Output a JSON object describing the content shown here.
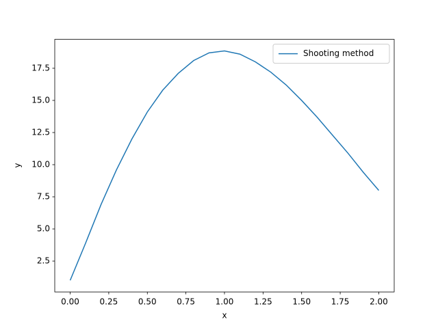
{
  "chart_data": {
    "type": "line",
    "x_label": "x",
    "y_label": "y",
    "x": [
      0,
      0.1,
      0.2,
      0.3,
      0.4,
      0.5,
      0.6,
      0.7,
      0.8,
      0.9,
      1.0,
      1.1,
      1.2,
      1.3,
      1.4,
      1.5,
      1.6,
      1.7,
      1.8,
      1.9,
      2.0
    ],
    "series": [
      {
        "name": "Shooting method",
        "color": "#1f77b4",
        "values": [
          1,
          3.9,
          6.9,
          9.6,
          12.0,
          14.1,
          15.8,
          17.1,
          18.1,
          18.7,
          18.85,
          18.6,
          18.0,
          17.2,
          16.2,
          15.0,
          13.7,
          12.3,
          10.9,
          9.4,
          8.0
        ]
      }
    ],
    "xlim": [
      -0.1,
      2.1
    ],
    "xticks": [
      {
        "value": 0,
        "label": "0.00"
      },
      {
        "value": 0.25,
        "label": "0.25"
      },
      {
        "value": 0.5,
        "label": "0.50"
      },
      {
        "value": 0.75,
        "label": "0.75"
      },
      {
        "value": 1,
        "label": "1.00"
      },
      {
        "value": 1.25,
        "label": "1.25"
      },
      {
        "value": 1.5,
        "label": "1.50"
      },
      {
        "value": 1.75,
        "label": "1.75"
      },
      {
        "value": 2,
        "label": "2.00"
      }
    ],
    "ylim": [
      0.1,
      19.75
    ],
    "yticks": [
      2.5,
      {
        "value": 5,
        "label": "5.0"
      },
      7.5,
      {
        "value": 10,
        "label": "10.0"
      },
      12.5,
      {
        "value": 15,
        "label": "15.0"
      },
      17.5
    ],
    "grid": false,
    "legend": "upper right"
  }
}
